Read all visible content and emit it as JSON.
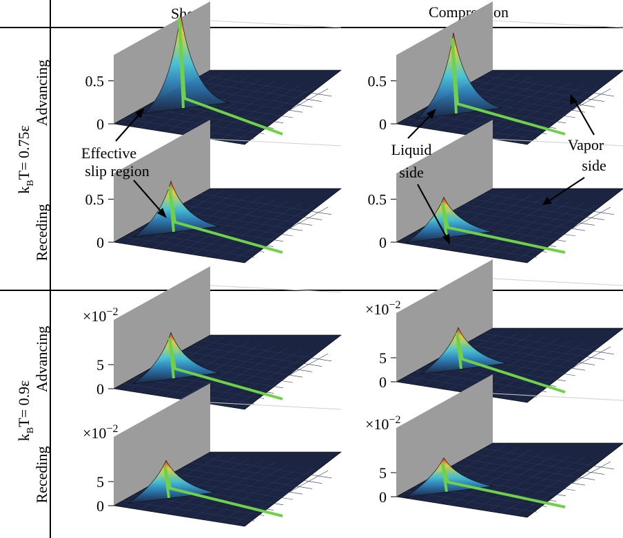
{
  "columns": {
    "left": "Shear",
    "right": "Compression"
  },
  "row_groups": {
    "top": {
      "label_prefix": "k",
      "label_sub": "B",
      "label_rest": "T= 0.75ε"
    },
    "bottom": {
      "label_prefix": "k",
      "label_sub": "B",
      "label_rest": "T= 0.9ε"
    }
  },
  "row_labels": [
    "Advancing",
    "Receding",
    "Advancing",
    "Receding"
  ],
  "annotations": {
    "effective_slip": [
      "Effective",
      "slip region"
    ],
    "liquid_side": [
      "Liquid",
      "side"
    ],
    "vapor_side": [
      "Vapor",
      "side"
    ]
  },
  "scale_factor": {
    "base": "×10",
    "exp": "−2"
  },
  "colors": {
    "surface_low": "#1b2541",
    "surface_mid": "#3fa8d8",
    "surface_high": "#d42a1e",
    "contact_line": "#6fd14a",
    "wall": "#9c9c9c",
    "separator": "#000000"
  },
  "chart_data": [
    {
      "type": "surface3d",
      "panel": "Shear / Advancing / kBT=0.75ε",
      "zticks": [
        "0",
        "0.5"
      ],
      "zlim": [
        0,
        1
      ],
      "peak_z": 1.0
    },
    {
      "type": "surface3d",
      "panel": "Compression / Advancing / kBT=0.75ε",
      "zticks": [
        "0",
        "0.5"
      ],
      "zlim": [
        0,
        1
      ],
      "peak_z": 0.82
    },
    {
      "type": "surface3d",
      "panel": "Shear / Receding / kBT=0.75ε",
      "zticks": [
        "0",
        "0.5"
      ],
      "zlim": [
        0,
        1
      ],
      "peak_z": 0.45
    },
    {
      "type": "surface3d",
      "panel": "Compression / Receding / kBT=0.75ε",
      "zticks": [
        "0",
        "0.5"
      ],
      "zlim": [
        0,
        1
      ],
      "peak_z": 0.32
    },
    {
      "type": "surface3d",
      "panel": "Shear / Advancing / kBT=0.9ε",
      "zticks": [
        "0",
        "5"
      ],
      "zlim": [
        0,
        10
      ],
      "zscale": "×10^-2",
      "peak_z": 7.0
    },
    {
      "type": "surface3d",
      "panel": "Compression / Advancing / kBT=0.9ε",
      "zticks": [
        "0",
        "5"
      ],
      "zlim": [
        0,
        10
      ],
      "zscale": "×10^-2",
      "peak_z": 6.0
    },
    {
      "type": "surface3d",
      "panel": "Shear / Receding / kBT=0.9ε",
      "zticks": [
        "0",
        "5"
      ],
      "zlim": [
        0,
        10
      ],
      "zscale": "×10^-2",
      "peak_z": 5.2
    },
    {
      "type": "surface3d",
      "panel": "Compression / Receding / kBT=0.9ε",
      "zticks": [
        "0",
        "5"
      ],
      "zlim": [
        0,
        10
      ],
      "zscale": "×10^-2",
      "peak_z": 4.4
    }
  ]
}
